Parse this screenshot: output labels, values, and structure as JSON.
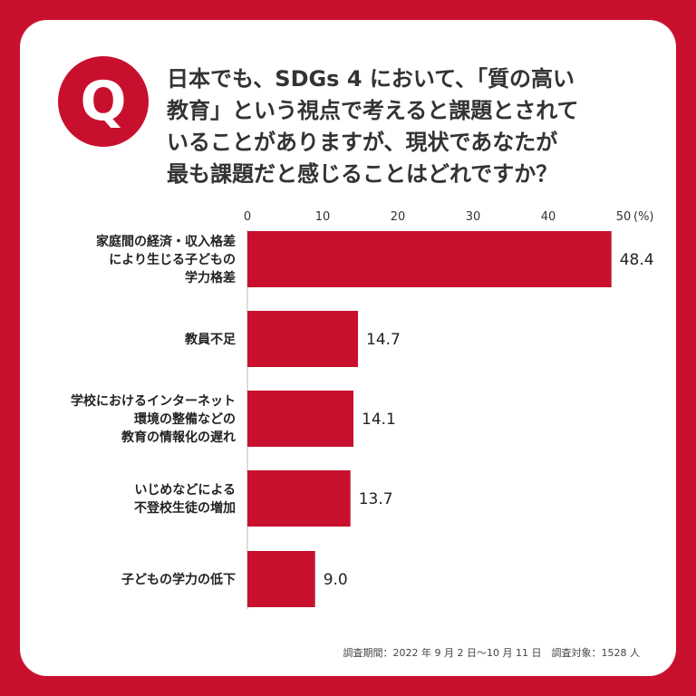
{
  "badge": "Q",
  "question": {
    "lines": [
      "日本でも、SDGs 4 において、「質の高い",
      "教育」という視点で考えると課題とされて",
      "いることがありますが、現状であなたが",
      "最も課題だと感じることはどれですか？"
    ]
  },
  "colors": {
    "background": "#c8102e",
    "card": "#ffffff",
    "bar": "#c8102e",
    "text": "#222222"
  },
  "chart_data": {
    "type": "bar",
    "orientation": "horizontal",
    "title": "",
    "xlabel": "",
    "ylabel": "",
    "unit": "(%)",
    "xlim": [
      0,
      50
    ],
    "ticks": [
      "0",
      "10",
      "20",
      "30",
      "40",
      "50"
    ],
    "grid": false,
    "categories": [
      [
        "家庭間の経済・収入格差",
        "により生じる子どもの",
        "学力格差"
      ],
      [
        "教員不足"
      ],
      [
        "学校におけるインターネット",
        "環境の整備などの",
        "教育の情報化の遅れ"
      ],
      [
        "いじめなどによる",
        "不登校生徒の増加"
      ],
      [
        "子どもの学力の低下"
      ]
    ],
    "values": [
      48.4,
      14.7,
      14.1,
      13.7,
      9.0
    ],
    "value_labels": [
      "48.4",
      "14.7",
      "14.1",
      "13.7",
      "9.0"
    ]
  },
  "footnote": "調査期間：2022 年 9 月 2 日〜10 月 11 日　調査対象：1528 人"
}
